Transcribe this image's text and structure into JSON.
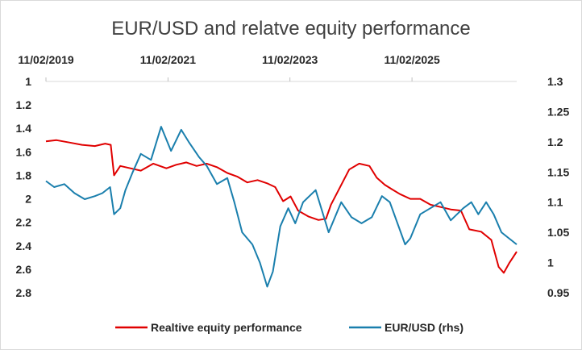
{
  "chart_data": {
    "type": "line",
    "title": "EUR/USD and relatve equity performance",
    "x_axis": {
      "position": "top",
      "ticks": [
        "11/02/2019",
        "11/02/2021",
        "11/02/2023",
        "11/02/2025"
      ]
    },
    "y_left": {
      "reversed": true,
      "range": [
        1,
        2.8
      ],
      "tick_labels": [
        "1",
        "1.2",
        "1.4",
        "1.6",
        "1.8",
        "2",
        "2.2",
        "2.4",
        "2.6",
        "2.8"
      ],
      "tick_values": [
        1,
        1.2,
        1.4,
        1.6,
        1.8,
        2,
        2.2,
        2.4,
        2.6,
        2.8
      ]
    },
    "y_right": {
      "range": [
        0.95,
        1.3
      ],
      "tick_labels": [
        "1.3",
        "1.25",
        "1.2",
        "1.15",
        "1.1",
        "1.05",
        "1",
        "0.95"
      ],
      "tick_values": [
        1.3,
        1.25,
        1.2,
        1.15,
        1.1,
        1.05,
        1,
        0.95
      ]
    },
    "grid": false,
    "legend_position": "bottom",
    "series": [
      {
        "name": "Realtive equity performance",
        "axis": "left",
        "color": "#e00000",
        "points": [
          [
            "2019-02-11",
            1.51
          ],
          [
            "2019-04-15",
            1.5
          ],
          [
            "2019-07-01",
            1.52
          ],
          [
            "2019-09-15",
            1.54
          ],
          [
            "2019-12-01",
            1.55
          ],
          [
            "2020-02-01",
            1.53
          ],
          [
            "2020-03-05",
            1.54
          ],
          [
            "2020-03-25",
            1.8
          ],
          [
            "2020-05-01",
            1.72
          ],
          [
            "2020-07-01",
            1.74
          ],
          [
            "2020-09-01",
            1.76
          ],
          [
            "2020-11-15",
            1.7
          ],
          [
            "2021-02-01",
            1.74
          ],
          [
            "2021-04-01",
            1.71
          ],
          [
            "2021-06-01",
            1.69
          ],
          [
            "2021-08-01",
            1.72
          ],
          [
            "2021-10-01",
            1.7
          ],
          [
            "2021-12-01",
            1.73
          ],
          [
            "2022-02-01",
            1.78
          ],
          [
            "2022-04-01",
            1.81
          ],
          [
            "2022-06-01",
            1.86
          ],
          [
            "2022-08-01",
            1.84
          ],
          [
            "2022-10-01",
            1.87
          ],
          [
            "2022-11-15",
            1.9
          ],
          [
            "2023-01-01",
            2.02
          ],
          [
            "2023-02-15",
            1.98
          ],
          [
            "2023-04-01",
            2.1
          ],
          [
            "2023-06-01",
            2.15
          ],
          [
            "2023-08-01",
            2.18
          ],
          [
            "2023-09-15",
            2.17
          ],
          [
            "2023-10-15",
            2.05
          ],
          [
            "2023-12-01",
            1.92
          ],
          [
            "2024-02-01",
            1.75
          ],
          [
            "2024-04-01",
            1.7
          ],
          [
            "2024-06-01",
            1.72
          ],
          [
            "2024-07-15",
            1.82
          ],
          [
            "2024-09-01",
            1.88
          ],
          [
            "2024-10-15",
            1.92
          ],
          [
            "2024-12-01",
            1.96
          ],
          [
            "2025-02-01",
            2.0
          ],
          [
            "2025-04-01",
            2.0
          ],
          [
            "2025-06-01",
            2.05
          ],
          [
            "2025-08-01",
            2.07
          ],
          [
            "2025-10-01",
            2.09
          ],
          [
            "2025-12-01",
            2.1
          ],
          [
            "2026-01-20",
            2.26
          ],
          [
            "2026-04-01",
            2.28
          ],
          [
            "2026-06-01",
            2.35
          ],
          [
            "2026-07-15",
            2.58
          ],
          [
            "2026-08-15",
            2.63
          ],
          [
            "2026-09-15",
            2.55
          ],
          [
            "2026-10-31",
            2.45
          ]
        ]
      },
      {
        "name": "EUR/USD (rhs)",
        "axis": "right",
        "color": "#1a7fad",
        "points": [
          [
            "2019-02-11",
            1.135
          ],
          [
            "2019-04-01",
            1.125
          ],
          [
            "2019-06-01",
            1.13
          ],
          [
            "2019-08-01",
            1.115
          ],
          [
            "2019-10-01",
            1.105
          ],
          [
            "2019-12-01",
            1.11
          ],
          [
            "2020-01-15",
            1.115
          ],
          [
            "2020-03-01",
            1.125
          ],
          [
            "2020-03-25",
            1.08
          ],
          [
            "2020-05-01",
            1.09
          ],
          [
            "2020-06-01",
            1.12
          ],
          [
            "2020-07-15",
            1.15
          ],
          [
            "2020-09-01",
            1.18
          ],
          [
            "2020-11-01",
            1.17
          ],
          [
            "2021-01-01",
            1.225
          ],
          [
            "2021-03-01",
            1.185
          ],
          [
            "2021-05-01",
            1.22
          ],
          [
            "2021-06-15",
            1.2
          ],
          [
            "2021-08-15",
            1.175
          ],
          [
            "2021-10-01",
            1.16
          ],
          [
            "2021-12-01",
            1.13
          ],
          [
            "2022-02-01",
            1.14
          ],
          [
            "2022-03-15",
            1.1
          ],
          [
            "2022-05-01",
            1.05
          ],
          [
            "2022-07-01",
            1.03
          ],
          [
            "2022-08-15",
            1.0
          ],
          [
            "2022-09-28",
            0.96
          ],
          [
            "2022-11-01",
            0.985
          ],
          [
            "2022-12-15",
            1.06
          ],
          [
            "2023-02-01",
            1.09
          ],
          [
            "2023-03-15",
            1.065
          ],
          [
            "2023-05-01",
            1.1
          ],
          [
            "2023-07-15",
            1.12
          ],
          [
            "2023-10-01",
            1.05
          ],
          [
            "2023-12-15",
            1.1
          ],
          [
            "2024-02-15",
            1.075
          ],
          [
            "2024-04-15",
            1.065
          ],
          [
            "2024-06-15",
            1.075
          ],
          [
            "2024-08-15",
            1.11
          ],
          [
            "2024-10-01",
            1.1
          ],
          [
            "2025-01-01",
            1.03
          ],
          [
            "2025-02-01",
            1.04
          ],
          [
            "2025-04-01",
            1.08
          ],
          [
            "2025-06-01",
            1.09
          ],
          [
            "2025-08-01",
            1.1
          ],
          [
            "2025-10-01",
            1.07
          ],
          [
            "2025-12-15",
            1.09
          ],
          [
            "2026-02-01",
            1.1
          ],
          [
            "2026-03-15",
            1.08
          ],
          [
            "2026-05-01",
            1.1
          ],
          [
            "2026-06-15",
            1.08
          ],
          [
            "2026-08-01",
            1.05
          ],
          [
            "2026-09-15",
            1.04
          ],
          [
            "2026-10-31",
            1.03
          ]
        ]
      }
    ]
  }
}
